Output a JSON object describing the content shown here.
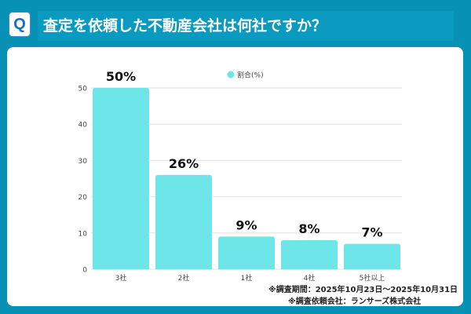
{
  "header": {
    "icon_letter": "Q",
    "title": "査定を依頼した不動産会社は何社ですか？"
  },
  "colors": {
    "background": "#0791b4",
    "bar": "#6ee5e8",
    "card": "#ffffff"
  },
  "chart_data": {
    "type": "bar",
    "categories": [
      "3社",
      "2社",
      "1社",
      "4社",
      "5社以上"
    ],
    "series": [
      {
        "name": "割合(%)",
        "values": [
          50,
          26,
          9,
          8,
          7
        ]
      }
    ],
    "data_labels": [
      "50%",
      "26%",
      "9%",
      "8%",
      "7%"
    ],
    "yticks": [
      0,
      10,
      20,
      30,
      40,
      50
    ],
    "ylim": [
      0,
      50
    ],
    "grid": true,
    "legend": "top-center"
  },
  "notes": [
    "※調査期間：2025年10月23日～2025年10月31日",
    "※調査依頼会社：ランサーズ株式会社"
  ]
}
